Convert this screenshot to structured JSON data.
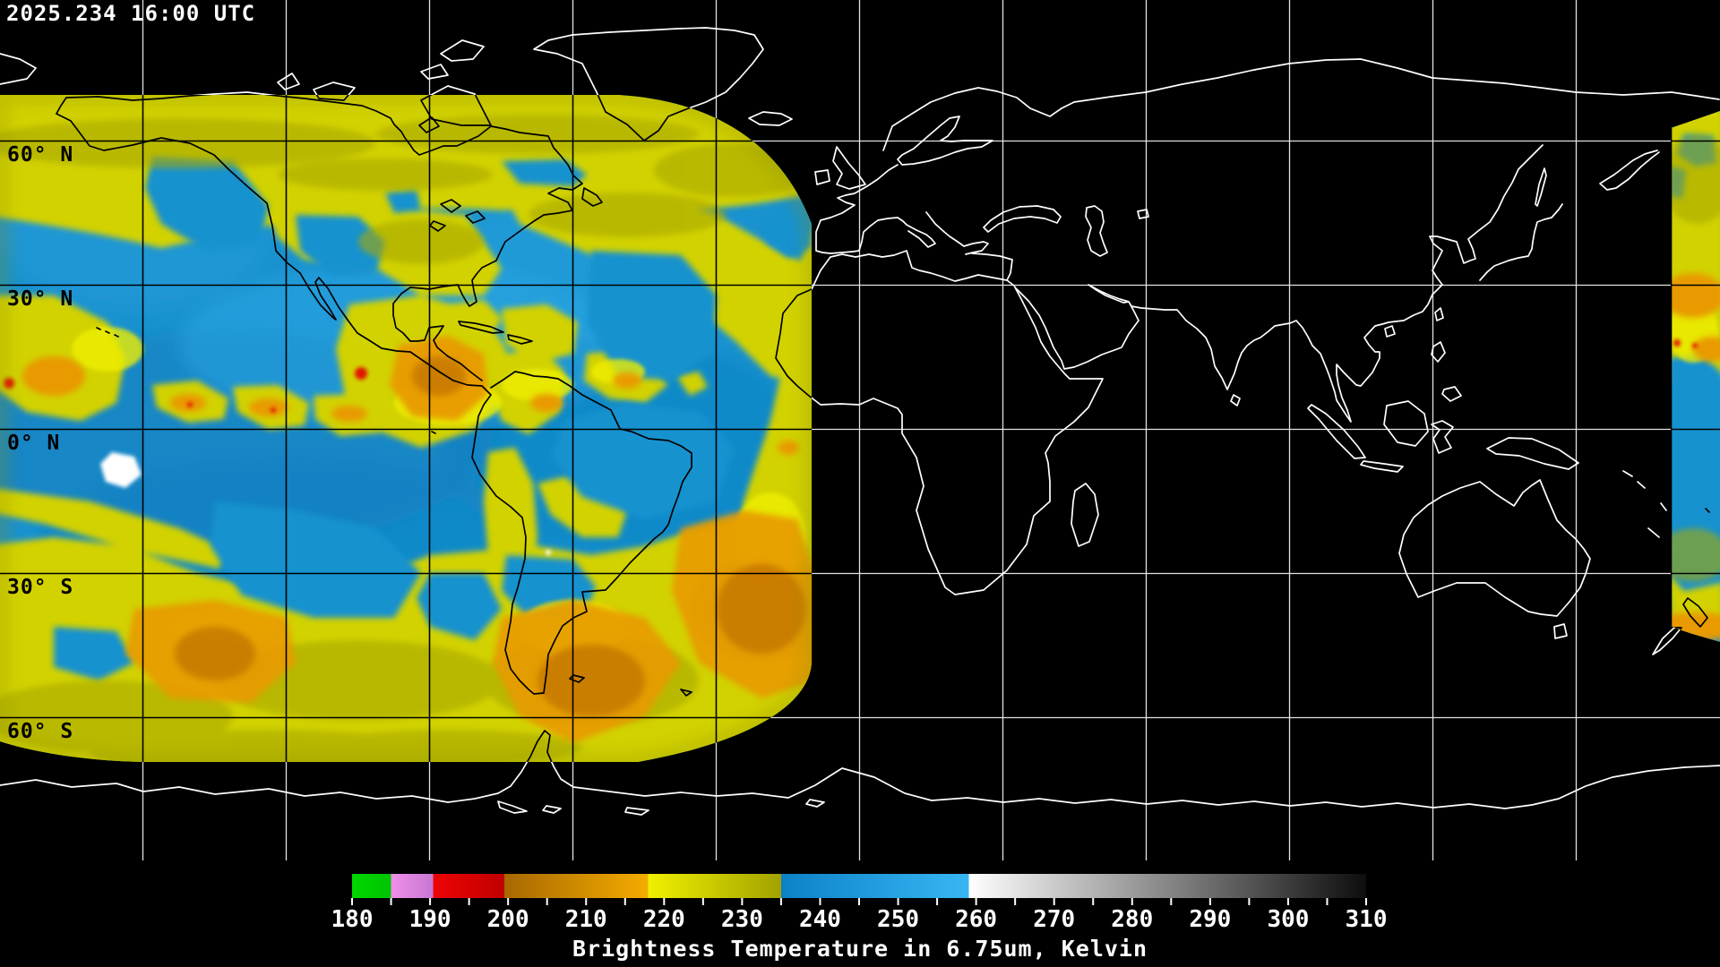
{
  "header": {
    "timestamp": "2025.234 16:00 UTC"
  },
  "map": {
    "latitude_labels": [
      {
        "label": "60° N"
      },
      {
        "label": "30° N"
      },
      {
        "label": "0° N"
      },
      {
        "label": "30° S"
      },
      {
        "label": "60° S"
      }
    ],
    "background_color": "#000000",
    "coastline_color_over_space": "#ffffff",
    "coastline_color_over_data": "#000000",
    "gridline_spacing_degrees": 30
  },
  "colorbar": {
    "title": "Brightness Temperature in 6.75um, Kelvin",
    "min": 180,
    "max": 310,
    "tick_step": 5,
    "label_step": 10,
    "ticks": [
      "180",
      "190",
      "200",
      "210",
      "220",
      "230",
      "240",
      "250",
      "260",
      "270",
      "280",
      "290",
      "300",
      "310"
    ],
    "segments": [
      {
        "range": "180-185",
        "name": "green",
        "color_start": "#00d800",
        "color_end": "#00c400"
      },
      {
        "range": "185-190",
        "name": "violet",
        "color_start": "#ef8fe8",
        "color_end": "#c678d2"
      },
      {
        "range": "190-200",
        "name": "red",
        "color_start": "#ee0404",
        "color_end": "#c00000"
      },
      {
        "range": "200-218",
        "name": "orange",
        "color_start": "#a86800",
        "color_end": "#f4ac00"
      },
      {
        "range": "218-235",
        "name": "yellow",
        "color_start": "#f0f000",
        "color_end": "#a2a200"
      },
      {
        "range": "235-259",
        "name": "blue",
        "color_start": "#0c82c6",
        "color_end": "#38b6f4"
      },
      {
        "range": "259-310",
        "name": "grayscale",
        "color_start": "#ffffff",
        "color_end": "#0d0d0d"
      }
    ]
  }
}
